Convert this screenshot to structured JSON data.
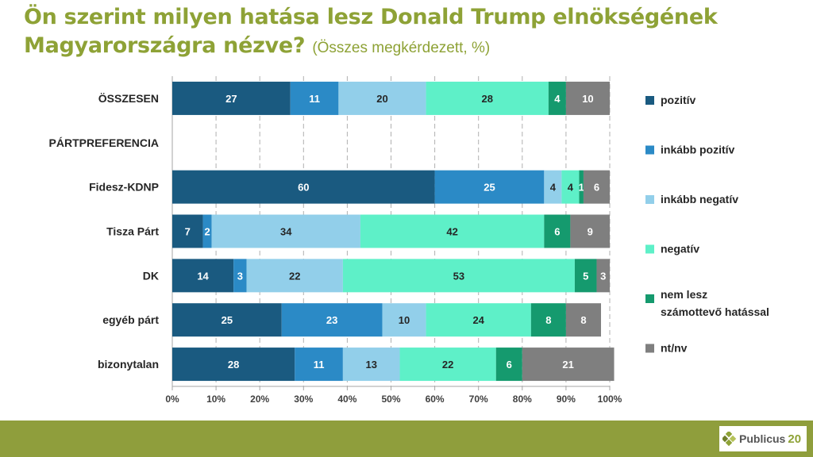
{
  "title": {
    "main": "Ön szerint milyen hatása lesz Donald Trump elnökségének Magyarországra nézve?",
    "sub": "(Összes megkérdezett, %)"
  },
  "logo": {
    "text": "Publicus",
    "number": "20"
  },
  "colors": {
    "title": "#8ea236",
    "footer": "#8f9e3c",
    "series": [
      "#1a5a80",
      "#2b8ac6",
      "#92cfea",
      "#5ef0c8",
      "#159a6e",
      "#7f7f7f"
    ]
  },
  "chart_data": {
    "type": "bar",
    "orientation": "horizontal",
    "stacked": true,
    "categories": [
      "ÖSSZESEN",
      "PÁRTPREFERENCIA",
      "Fidesz-KDNP",
      "Tisza Párt",
      "DK",
      "egyéb párt",
      "bizonytalan"
    ],
    "series": [
      {
        "name": "pozitív",
        "values": [
          27,
          null,
          60,
          7,
          14,
          25,
          28
        ]
      },
      {
        "name": "inkább pozitív",
        "values": [
          11,
          null,
          25,
          2,
          3,
          23,
          11
        ]
      },
      {
        "name": "inkább negatív",
        "values": [
          20,
          null,
          4,
          34,
          22,
          10,
          13
        ]
      },
      {
        "name": "negatív",
        "values": [
          28,
          null,
          4,
          42,
          53,
          24,
          22
        ]
      },
      {
        "name": "nem lesz számottevő hatással",
        "values": [
          4,
          null,
          1,
          6,
          5,
          8,
          6
        ]
      },
      {
        "name": "nt/nv",
        "values": [
          10,
          null,
          6,
          9,
          3,
          8,
          21
        ]
      }
    ],
    "xlim": [
      0,
      100
    ],
    "x_ticks": [
      "0%",
      "10%",
      "20%",
      "30%",
      "40%",
      "50%",
      "60%",
      "70%",
      "80%",
      "90%",
      "100%"
    ],
    "grid": true,
    "legend": "right"
  }
}
